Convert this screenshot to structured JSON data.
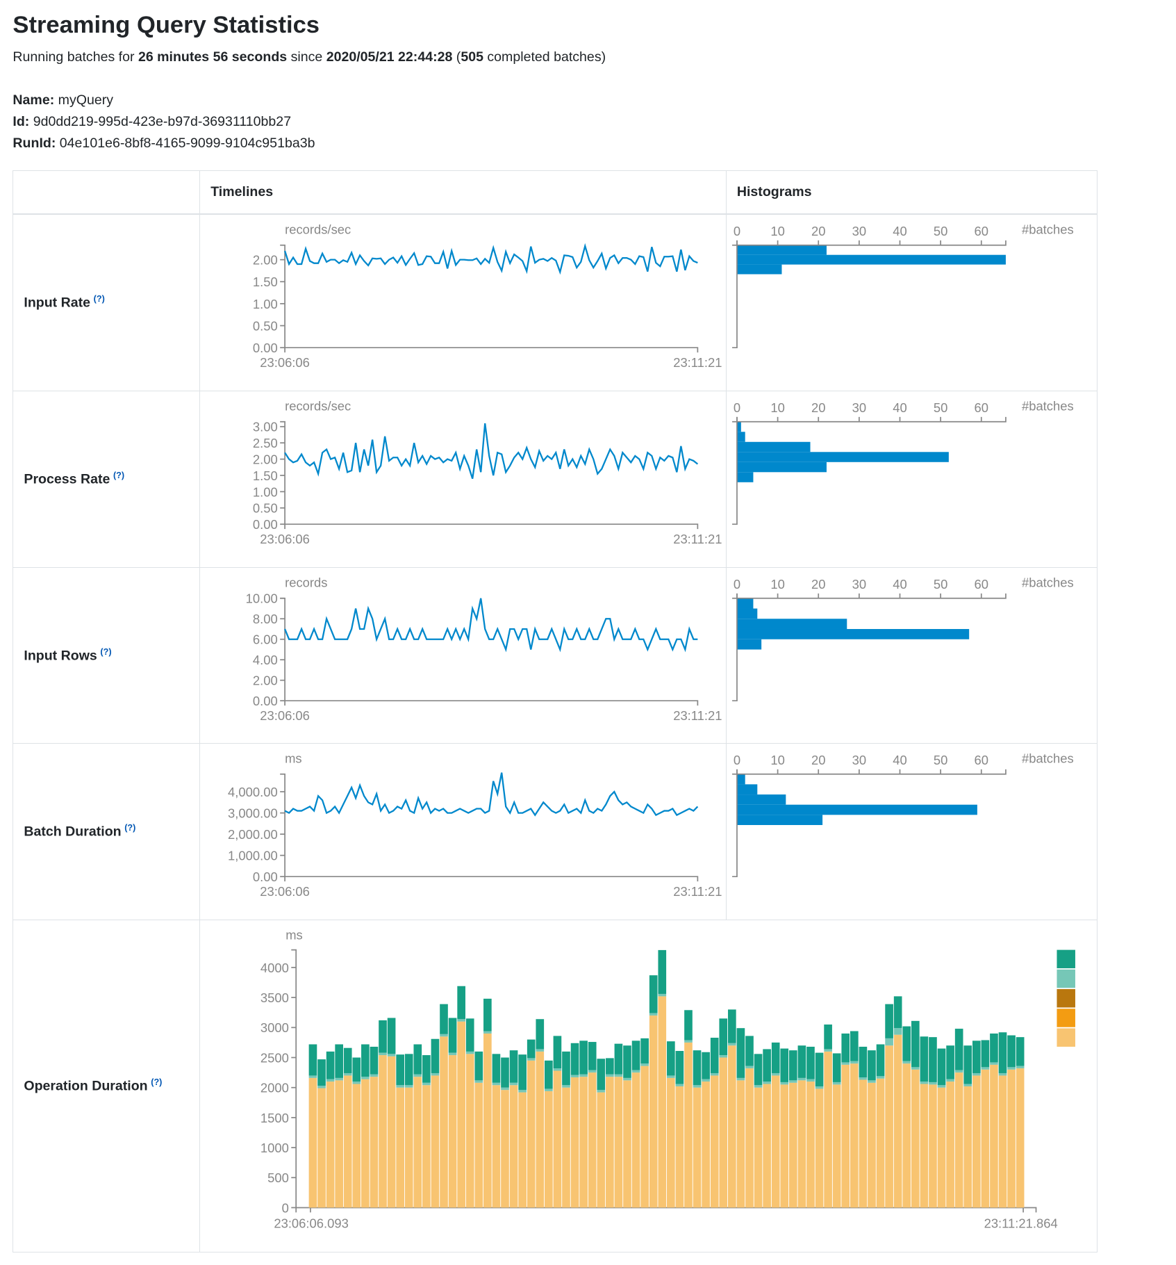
{
  "page": {
    "title": "Streaming Query Statistics",
    "summary": {
      "prefix": "Running batches for ",
      "duration": "26 minutes 56 seconds",
      "since_label": " since ",
      "start": "2020/05/21 22:44:28",
      "open": " (",
      "batches": "505",
      "suffix": " completed batches)"
    },
    "name_label": "Name:",
    "name": "myQuery",
    "id_label": "Id:",
    "id": "9d0dd219-995d-423e-b97d-36931110bb27",
    "runid_label": "RunId:",
    "runid": "04e101e6-8bf8-4165-9099-9104c951ba3b"
  },
  "table": {
    "headers": [
      "",
      "Timelines",
      "Histograms"
    ],
    "help_mark": "(?)",
    "rows": [
      "Input Rate",
      "Process Rate",
      "Input Rows",
      "Batch Duration",
      "Operation Duration"
    ]
  },
  "colors": {
    "line": "#0088cc",
    "hist": "#0088cc",
    "axis": "#888888"
  },
  "chart_data": [
    {
      "type": "line",
      "ylabel": "records/sec",
      "x_ticks": [
        "23:06:06",
        "23:11:21"
      ],
      "ylim": [
        0,
        2.33
      ],
      "y_ticks": [
        "0.00",
        "0.50",
        "1.00",
        "1.50",
        "2.00"
      ],
      "values": [
        2.2,
        1.9,
        2.05,
        1.9,
        1.9,
        2.25,
        1.97,
        1.92,
        1.92,
        2.14,
        1.95,
        2.0,
        2.0,
        1.92,
        1.99,
        1.95,
        2.16,
        1.9,
        2.1,
        1.97,
        1.87,
        2.03,
        2.02,
        2.03,
        1.9,
        2.0,
        2.05,
        1.93,
        2.08,
        1.88,
        2.02,
        2.15,
        1.88,
        1.9,
        2.08,
        2.07,
        1.92,
        1.92,
        2.18,
        1.8,
        2.2,
        1.88,
        2.0,
        2.0,
        1.99,
        1.99,
        2.03,
        1.9,
        2.02,
        1.93,
        2.27,
        1.95,
        1.75,
        2.18,
        1.92,
        2.12,
        2.05,
        1.97,
        1.74,
        2.3,
        1.93,
        2.0,
        2.02,
        1.97,
        2.04,
        1.98,
        1.72,
        2.1,
        2.09,
        2.06,
        1.82,
        1.95,
        2.31,
        1.99,
        1.82,
        1.97,
        2.14,
        1.8,
        2.04,
        2.1,
        1.92,
        2.04,
        2.04,
        2.0,
        1.9,
        2.08,
        2.06,
        1.73,
        2.29,
        1.93,
        1.85,
        2.07,
        2.07,
        2.08,
        1.73,
        2.23,
        1.76,
        2.08,
        1.97,
        1.93
      ],
      "histogram": {
        "type": "bar",
        "xlabel": "#batches",
        "x_ticks": [
          "0",
          "10",
          "20",
          "30",
          "40",
          "50",
          "60"
        ],
        "xlim": [
          0,
          66
        ],
        "bins": [
          {
            "from": 2.11,
            "to": 2.33,
            "count": 22
          },
          {
            "from": 1.89,
            "to": 2.11,
            "count": 66
          },
          {
            "from": 1.67,
            "to": 1.89,
            "count": 11
          }
        ]
      }
    },
    {
      "type": "line",
      "ylabel": "records/sec",
      "x_ticks": [
        "23:06:06",
        "23:11:21"
      ],
      "ylim": [
        0,
        3.15
      ],
      "y_ticks": [
        "0.00",
        "0.50",
        "1.00",
        "1.50",
        "2.00",
        "2.50",
        "3.00"
      ],
      "values": [
        2.2,
        2.0,
        1.9,
        1.95,
        2.15,
        1.9,
        1.8,
        1.9,
        1.55,
        2.2,
        2.3,
        2.0,
        2.05,
        1.7,
        2.2,
        1.6,
        1.65,
        2.5,
        1.6,
        2.3,
        1.8,
        2.6,
        1.6,
        1.8,
        2.7,
        1.95,
        2.05,
        2.05,
        1.8,
        2.0,
        1.8,
        2.5,
        1.9,
        2.1,
        1.85,
        2.1,
        2.0,
        2.05,
        1.9,
        2.0,
        1.95,
        2.2,
        1.7,
        2.1,
        1.8,
        1.4,
        2.3,
        1.6,
        3.1,
        2.1,
        1.5,
        2.2,
        2.15,
        1.6,
        1.8,
        2.05,
        2.2,
        2.0,
        2.35,
        2.0,
        1.75,
        2.25,
        1.95,
        2.1,
        2.0,
        2.2,
        1.7,
        2.3,
        1.8,
        2.0,
        1.75,
        2.1,
        1.85,
        2.3,
        2.0,
        1.55,
        1.7,
        2.0,
        2.3,
        2.1,
        1.7,
        2.2,
        2.05,
        1.9,
        2.1,
        2.0,
        1.7,
        2.2,
        2.1,
        1.7,
        2.05,
        1.95,
        2.1,
        2.05,
        1.6,
        2.4,
        1.7,
        2.0,
        1.95,
        1.85
      ],
      "histogram": {
        "type": "bar",
        "xlabel": "#batches",
        "x_ticks": [
          "0",
          "10",
          "20",
          "30",
          "40",
          "50",
          "60"
        ],
        "xlim": [
          0,
          66
        ],
        "bins": [
          {
            "from": 2.84,
            "to": 3.15,
            "count": 1
          },
          {
            "from": 2.53,
            "to": 2.84,
            "count": 2
          },
          {
            "from": 2.22,
            "to": 2.53,
            "count": 18
          },
          {
            "from": 1.91,
            "to": 2.22,
            "count": 52
          },
          {
            "from": 1.6,
            "to": 1.91,
            "count": 22
          },
          {
            "from": 1.29,
            "to": 1.6,
            "count": 4
          }
        ]
      }
    },
    {
      "type": "line",
      "ylabel": "records",
      "x_ticks": [
        "23:06:06",
        "23:11:21"
      ],
      "ylim": [
        0,
        10
      ],
      "y_ticks": [
        "0.00",
        "2.00",
        "4.00",
        "6.00",
        "8.00",
        "10.00"
      ],
      "values": [
        7,
        6,
        6,
        6,
        7,
        6,
        6,
        7,
        6,
        6,
        8,
        7,
        6,
        6,
        6,
        6,
        7,
        9,
        7,
        7,
        9,
        8,
        6,
        7,
        8,
        6,
        6,
        7,
        6,
        6,
        7,
        6,
        6,
        7,
        6,
        6,
        6,
        6,
        6,
        7,
        6,
        7,
        6,
        7,
        6,
        9,
        8,
        10,
        7,
        6,
        6,
        7,
        6,
        5,
        7,
        7,
        6,
        7,
        7,
        5,
        7,
        6,
        6,
        6,
        7,
        6,
        5,
        7,
        6,
        6,
        7,
        6,
        6,
        7,
        6,
        6,
        7,
        8,
        8,
        6,
        7,
        6,
        6,
        6,
        7,
        6,
        6,
        5,
        6,
        7,
        6,
        6,
        6,
        5,
        6,
        6,
        5,
        7,
        6,
        6
      ],
      "histogram": {
        "type": "bar",
        "xlabel": "#batches",
        "x_ticks": [
          "0",
          "10",
          "20",
          "30",
          "40",
          "50",
          "60"
        ],
        "xlim": [
          0,
          66
        ],
        "bins": [
          {
            "from": 9,
            "to": 10,
            "count": 4
          },
          {
            "from": 8,
            "to": 9,
            "count": 5
          },
          {
            "from": 7,
            "to": 8,
            "count": 27
          },
          {
            "from": 6,
            "to": 7,
            "count": 57
          },
          {
            "from": 5,
            "to": 6,
            "count": 6
          }
        ]
      }
    },
    {
      "type": "line",
      "ylabel": "ms",
      "x_ticks": [
        "23:06:06",
        "23:11:21"
      ],
      "ylim": [
        0,
        4830
      ],
      "y_ticks": [
        "0.00",
        "1,000.00",
        "2,000.00",
        "3,000.00",
        "4,000.00"
      ],
      "values": [
        3100,
        3000,
        3200,
        3100,
        3100,
        3200,
        3300,
        3100,
        3800,
        3600,
        3000,
        3100,
        3300,
        3000,
        3400,
        3800,
        4200,
        3700,
        4300,
        3800,
        3500,
        3400,
        3900,
        3100,
        3400,
        3000,
        3100,
        3300,
        3200,
        3600,
        3100,
        3000,
        3700,
        3200,
        3500,
        3000,
        3200,
        3100,
        3200,
        3000,
        3000,
        3100,
        3200,
        3100,
        3000,
        3100,
        3200,
        3200,
        3000,
        3100,
        4500,
        3900,
        4900,
        3300,
        3000,
        3500,
        3000,
        3000,
        3100,
        3200,
        2900,
        3200,
        3500,
        3300,
        3100,
        3000,
        3100,
        3400,
        3000,
        3100,
        3200,
        3000,
        3600,
        3100,
        3000,
        3200,
        3100,
        3400,
        3800,
        4000,
        3600,
        3400,
        3500,
        3300,
        3200,
        3100,
        3000,
        3400,
        3200,
        2900,
        3000,
        3100,
        3100,
        3200,
        2900,
        3000,
        3100,
        3200,
        3100,
        3300
      ],
      "histogram": {
        "type": "bar",
        "xlabel": "#batches",
        "x_ticks": [
          "0",
          "10",
          "20",
          "30",
          "40",
          "50",
          "60"
        ],
        "xlim": [
          0,
          66
        ],
        "bins": [
          {
            "from": 4350,
            "to": 4830,
            "count": 2
          },
          {
            "from": 3870,
            "to": 4350,
            "count": 5
          },
          {
            "from": 3390,
            "to": 3870,
            "count": 12
          },
          {
            "from": 2910,
            "to": 3390,
            "count": 59
          },
          {
            "from": 2430,
            "to": 2910,
            "count": 21
          }
        ]
      }
    },
    {
      "type": "bar",
      "stacked": true,
      "ylabel": "ms",
      "x_ticks": [
        "23:06:06.093",
        "23:11:21.864"
      ],
      "ylim": [
        0,
        4300
      ],
      "y_ticks": [
        "0",
        "500",
        "1000",
        "1500",
        "2000",
        "2500",
        "3000",
        "3500",
        "4000"
      ],
      "series": [
        {
          "color": "#f8c471",
          "values": [
            2160,
            1990,
            2100,
            2120,
            2200,
            2060,
            2140,
            2180,
            2540,
            2520,
            2000,
            2000,
            2180,
            2040,
            2200,
            2850,
            2540,
            3100,
            2560,
            2080,
            2900,
            2040,
            1960,
            2040,
            1920,
            2450,
            2600,
            1940,
            2280,
            2000,
            2170,
            2180,
            2250,
            1920,
            2180,
            2180,
            2120,
            2250,
            2360,
            3200,
            3520,
            2160,
            2020,
            2750,
            2000,
            2100,
            2200,
            2500,
            2700,
            2120,
            2320,
            2000,
            2060,
            2200,
            2050,
            2080,
            2120,
            2100,
            1980,
            2600,
            2050,
            2380,
            2400,
            2130,
            2080,
            2150,
            2700,
            2880,
            2400,
            2300,
            2060,
            2050,
            2000,
            2100,
            2250,
            2020,
            2200,
            2300,
            2380,
            2200,
            2300,
            2320
          ]
        },
        {
          "color": "#f39c12",
          "values": [
            0,
            0,
            0,
            0,
            0,
            0,
            0,
            0,
            0,
            0,
            0,
            0,
            0,
            0,
            0,
            0,
            0,
            0,
            0,
            0,
            0,
            0,
            0,
            0,
            0,
            0,
            0,
            0,
            0,
            0,
            0,
            0,
            0,
            0,
            0,
            0,
            0,
            0,
            0,
            0,
            0,
            0,
            0,
            0,
            0,
            0,
            0,
            0,
            0,
            0,
            0,
            0,
            0,
            0,
            0,
            0,
            0,
            0,
            0,
            0,
            0,
            0,
            0,
            0,
            0,
            0,
            0,
            0,
            0,
            0,
            0,
            0,
            0,
            0,
            0,
            0,
            0,
            0,
            0,
            0,
            0,
            0
          ]
        },
        {
          "color": "#b9770e",
          "values": [
            0,
            0,
            0,
            0,
            0,
            0,
            0,
            0,
            0,
            0,
            0,
            0,
            0,
            0,
            0,
            0,
            0,
            0,
            0,
            0,
            0,
            0,
            0,
            0,
            0,
            0,
            0,
            0,
            0,
            0,
            0,
            0,
            0,
            0,
            0,
            0,
            0,
            0,
            0,
            0,
            0,
            0,
            0,
            0,
            0,
            0,
            0,
            0,
            0,
            0,
            0,
            0,
            0,
            0,
            0,
            0,
            0,
            0,
            0,
            0,
            0,
            0,
            0,
            0,
            0,
            0,
            0,
            0,
            0,
            0,
            0,
            0,
            0,
            0,
            0,
            0,
            0,
            0,
            0,
            0,
            0,
            0
          ]
        },
        {
          "color": "#76c7b7",
          "values": [
            40,
            40,
            40,
            40,
            40,
            40,
            40,
            40,
            40,
            40,
            40,
            40,
            40,
            40,
            40,
            40,
            40,
            40,
            40,
            40,
            40,
            40,
            40,
            40,
            40,
            40,
            40,
            40,
            40,
            40,
            40,
            40,
            40,
            40,
            40,
            40,
            40,
            40,
            40,
            40,
            40,
            40,
            40,
            40,
            40,
            40,
            40,
            40,
            40,
            40,
            40,
            40,
            40,
            40,
            40,
            40,
            40,
            40,
            40,
            40,
            40,
            40,
            40,
            40,
            40,
            40,
            120,
            110,
            40,
            40,
            40,
            40,
            40,
            40,
            40,
            40,
            40,
            40,
            40,
            40,
            40,
            40
          ]
        },
        {
          "color": "#16a085",
          "values": [
            520,
            440,
            460,
            560,
            420,
            400,
            540,
            460,
            540,
            600,
            510,
            520,
            500,
            460,
            570,
            500,
            580,
            550,
            550,
            480,
            540,
            480,
            500,
            540,
            590,
            310,
            500,
            470,
            540,
            560,
            530,
            560,
            470,
            520,
            270,
            510,
            540,
            490,
            420,
            630,
            730,
            570,
            550,
            500,
            580,
            450,
            590,
            610,
            560,
            830,
            500,
            520,
            540,
            510,
            560,
            500,
            540,
            540,
            560,
            410,
            480,
            480,
            500,
            510,
            500,
            530,
            570,
            530,
            580,
            770,
            750,
            750,
            610,
            560,
            690,
            640,
            540,
            450,
            480,
            680,
            530,
            480
          ]
        }
      ]
    }
  ]
}
